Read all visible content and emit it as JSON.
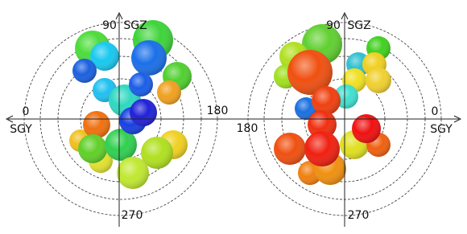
{
  "panels": [
    {
      "labels": {
        "top_angle": "90",
        "top_axis": "SGZ",
        "left_angle": "0",
        "left_axis": "SGY",
        "right_angle": "180",
        "bottom_angle": "270"
      }
    },
    {
      "labels": {
        "top_angle": "90",
        "top_axis": "SGZ",
        "left_angle": "180",
        "right_angle": "0",
        "right_axis": "SGY",
        "bottom_angle": "270"
      }
    }
  ]
}
